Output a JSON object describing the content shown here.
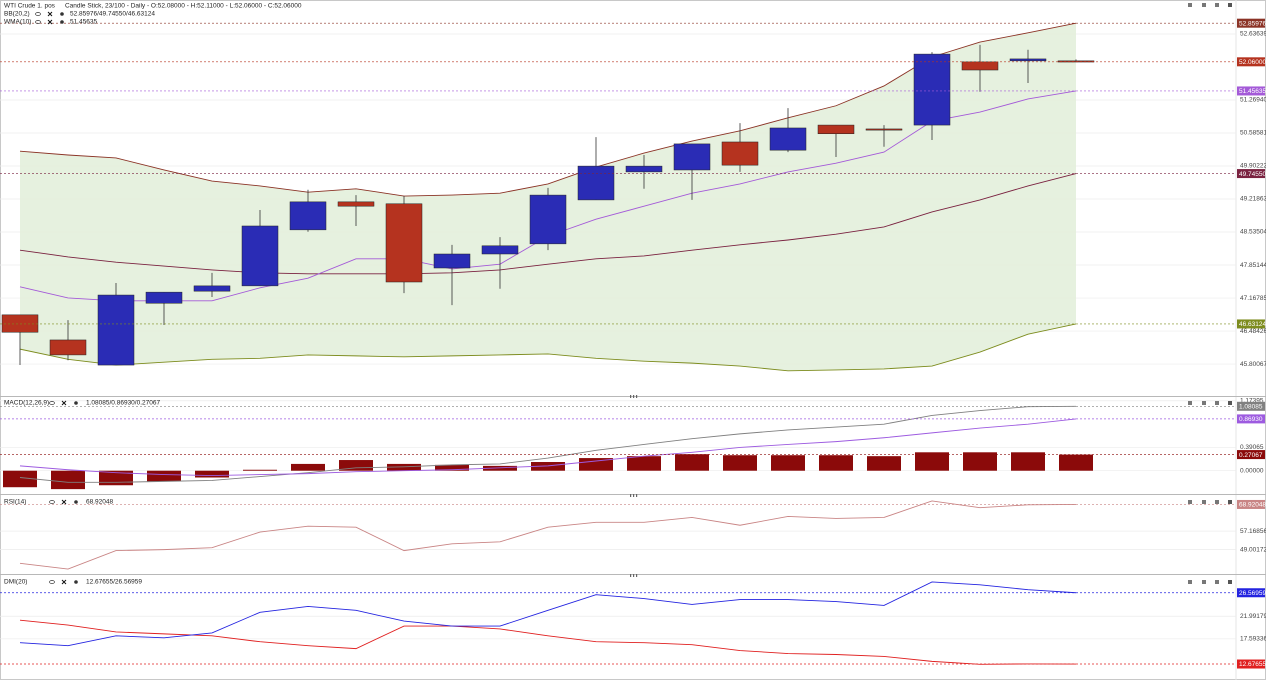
{
  "chart_data": [
    {
      "type": "candlestick",
      "title": "WTI Crude 1. pos",
      "subtitle": "Candle Stick, 23/100 - Daily - O:52.08000 - H:52.11000 - L:52.06000 - C:52.06000",
      "categories": [
        null,
        null,
        null,
        null,
        null,
        null,
        null,
        null,
        null,
        null,
        null,
        null,
        null,
        null,
        null,
        null,
        null,
        null,
        null,
        null,
        null,
        null,
        null
      ],
      "open": [
        46.82,
        46.3,
        45.78,
        47.06,
        47.31,
        47.42,
        48.58,
        49.16,
        49.12,
        47.79,
        48.08,
        48.29,
        49.2,
        49.78,
        49.82,
        50.4,
        50.23,
        50.75,
        50.67,
        50.75,
        52.06,
        52.08,
        52.08
      ],
      "high": [
        46.82,
        46.71,
        47.48,
        47.29,
        47.69,
        48.99,
        49.41,
        49.3,
        49.28,
        48.27,
        48.43,
        49.45,
        50.5,
        50.13,
        50.36,
        50.79,
        51.1,
        50.75,
        50.75,
        52.26,
        52.41,
        52.31,
        52.11
      ],
      "low": [
        45.78,
        45.88,
        45.78,
        46.61,
        47.19,
        47.42,
        48.54,
        48.66,
        47.27,
        47.02,
        47.36,
        48.16,
        49.2,
        49.43,
        49.2,
        49.78,
        50.19,
        50.09,
        50.3,
        50.44,
        51.44,
        51.62,
        52.06
      ],
      "close": [
        46.46,
        45.99,
        47.23,
        47.29,
        47.42,
        48.66,
        49.16,
        49.07,
        47.5,
        48.08,
        48.25,
        49.3,
        49.9,
        49.9,
        50.36,
        49.92,
        50.69,
        50.57,
        50.65,
        52.22,
        51.89,
        52.12,
        52.06
      ],
      "up_color": "#2a2cb5",
      "down_color": "#b5331f",
      "close_label": "52.06000",
      "indicators": [
        {
          "name": "BB(20,2)",
          "legend_value": "52.85976/49.74550/46.63124",
          "legend_color": "#a0281e",
          "fill": "#e3efdb",
          "series": [
            {
              "color": "#8b3326",
              "last_label": "52.85976",
              "values": [
                50.21,
                50.13,
                50.07,
                49.82,
                49.59,
                49.49,
                49.36,
                49.43,
                49.28,
                49.3,
                49.34,
                49.53,
                49.88,
                50.17,
                50.42,
                50.63,
                50.9,
                51.15,
                51.56,
                52.16,
                52.47,
                52.66,
                52.85976
              ]
            },
            {
              "color": "#7a2240",
              "last_label": "49.74550",
              "values": [
                48.16,
                48.02,
                47.91,
                47.83,
                47.75,
                47.69,
                47.67,
                47.67,
                47.67,
                47.69,
                47.75,
                47.87,
                47.98,
                48.04,
                48.16,
                48.27,
                48.37,
                48.49,
                48.64,
                48.95,
                49.2,
                49.49,
                49.7455
              ]
            },
            {
              "color": "#7d8c1e",
              "last_label": "46.63124",
              "values": [
                46.11,
                45.9,
                45.78,
                45.84,
                45.9,
                45.92,
                45.99,
                45.97,
                45.95,
                45.97,
                45.99,
                46.01,
                45.92,
                45.86,
                45.82,
                45.76,
                45.66,
                45.68,
                45.7,
                45.76,
                46.05,
                46.42,
                46.63124
              ]
            }
          ]
        },
        {
          "name": "WMA(10)",
          "legend_value": "51.45635",
          "legend_color": "#b050d8",
          "series": [
            {
              "color": "#a45ad8",
              "last_label": "51.45635",
              "values": [
                47.4,
                47.17,
                47.11,
                47.11,
                47.11,
                47.38,
                47.58,
                47.98,
                47.98,
                47.77,
                47.87,
                48.45,
                48.8,
                49.07,
                49.34,
                49.53,
                49.78,
                49.96,
                50.19,
                50.83,
                51.02,
                51.29,
                51.45635
              ]
            }
          ]
        }
      ],
      "ylim": [
        45.16,
        53.34
      ],
      "yticks": [
        52.63639,
        {
          "value": 51.2694,
          "label": "51.26940"
        },
        50.58581,
        49.90222,
        49.21863,
        48.53504,
        47.85144,
        47.16785,
        46.48426,
        45.80067
      ],
      "grid": true
    },
    {
      "type": "indicator",
      "title": "MACD(12,26,9)",
      "legend_value": "1.08085/0.86930/0.27067",
      "legend_color": "#8b0a0a",
      "series": [
        {
          "kind": "bar",
          "color": "#8b0a0a",
          "last_label": "0.27067",
          "values": [
            -0.277,
            -0.309,
            -0.244,
            -0.179,
            -0.114,
            0.016,
            0.114,
            0.179,
            0.114,
            0.098,
            0.081,
            0.146,
            0.212,
            0.244,
            0.277,
            0.26,
            0.26,
            0.26,
            0.244,
            0.309,
            0.309,
            0.309,
            0.27067
          ]
        },
        {
          "kind": "line",
          "color": "#808080",
          "last_label": "1.08085",
          "values": [
            -0.114,
            -0.195,
            -0.195,
            -0.179,
            -0.163,
            -0.098,
            -0.033,
            0.049,
            0.065,
            0.098,
            0.114,
            0.212,
            0.342,
            0.44,
            0.537,
            0.618,
            0.684,
            0.732,
            0.781,
            0.928,
            1.009,
            1.074,
            1.08085
          ]
        },
        {
          "kind": "line",
          "color": "#9d5be0",
          "last_label": "0.86930",
          "values": [
            0.081,
            0.016,
            -0.033,
            -0.065,
            -0.081,
            -0.065,
            -0.049,
            -0.016,
            0,
            0.016,
            0.049,
            0.081,
            0.163,
            0.244,
            0.309,
            0.391,
            0.44,
            0.488,
            0.553,
            0.635,
            0.716,
            0.781,
            0.8693
          ]
        }
      ],
      "ylim": [
        -0.374,
        1.22
      ],
      "yticks": [
        1.17395,
        0.39065,
        {
          "value": 0,
          "label": "0.00000"
        }
      ],
      "grid": true
    },
    {
      "type": "indicator",
      "title": "RSI(14)",
      "legend_value": "68.92048",
      "legend_color": "#c78a8a",
      "series": [
        {
          "kind": "line",
          "color": "#c98585",
          "last_label": "68.92048",
          "values": [
            42.98,
            40.41,
            48.57,
            49.0,
            49.86,
            56.74,
            59.32,
            58.89,
            48.57,
            51.58,
            52.44,
            58.89,
            61.04,
            61.04,
            63.19,
            59.75,
            63.62,
            62.76,
            63.19,
            70.49,
            67.48,
            68.77,
            68.92048
          ]
        }
      ],
      "ylim": [
        38.69,
        72.21
      ],
      "yticks": [
        57.16856,
        49.00172
      ],
      "grid": true
    },
    {
      "type": "indicator",
      "title": "DMI(20)",
      "legend_value": "12.67655/26.56959",
      "legend_color": "#d81e1e",
      "series": [
        {
          "kind": "line",
          "color": "#e02020",
          "last_label": "12.67655",
          "values": [
            21.23,
            20.27,
            18.93,
            18.55,
            18.17,
            17.02,
            16.25,
            15.68,
            20.08,
            20.08,
            19.51,
            18.17,
            17.02,
            16.83,
            16.45,
            15.3,
            14.72,
            14.53,
            14.15,
            13.19,
            12.62,
            12.7,
            12.67655
          ]
        },
        {
          "kind": "line",
          "color": "#2424e0",
          "last_label": "26.56959",
          "values": [
            16.83,
            16.25,
            18.17,
            17.78,
            18.74,
            22.76,
            23.9,
            23.14,
            21.04,
            20.08,
            20.08,
            23.14,
            26.2,
            25.43,
            24.29,
            25.24,
            25.24,
            24.86,
            24.1,
            28.68,
            28.11,
            27.16,
            26.56959
          ]
        }
      ],
      "ylim": [
        9.56,
        29.64
      ],
      "yticks": [
        21.99179,
        17.59336
      ],
      "grid": true
    }
  ]
}
